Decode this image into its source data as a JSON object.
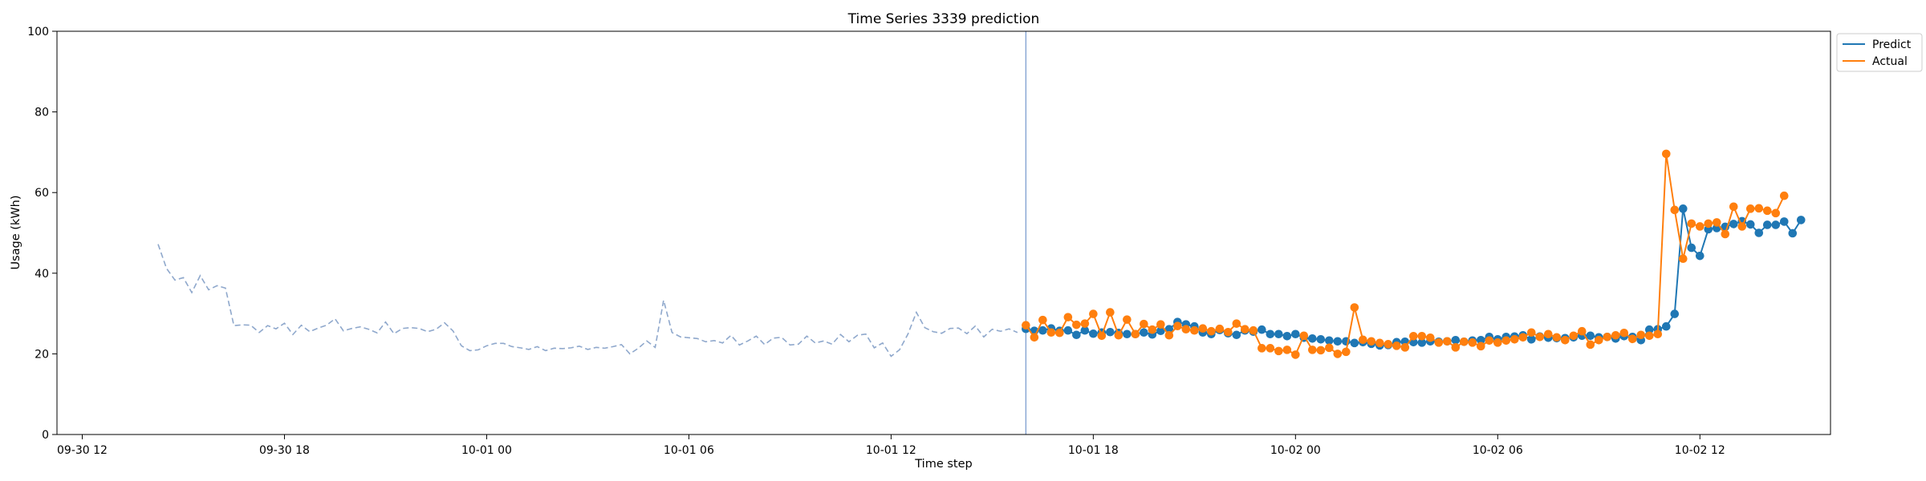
{
  "chart_data": {
    "type": "line",
    "title": "Time Series 3339 prediction",
    "xlabel": "Time step",
    "ylabel": "Usage (kWh)",
    "ylim": [
      0,
      100
    ],
    "yticks": [
      0,
      20,
      40,
      60,
      80,
      100
    ],
    "xticks": [
      "09-30 12",
      "09-30 18",
      "10-01 00",
      "10-01 06",
      "10-01 12",
      "10-01 18",
      "10-02 00",
      "10-02 06",
      "10-02 12"
    ],
    "x_step_hours": 0.25,
    "x_range_steps": [
      -3.0,
      207.5
    ],
    "split_step": 112,
    "legend": {
      "position": "top-right",
      "entries": [
        "Predict",
        "Actual"
      ]
    },
    "colors": {
      "history": "#8fa8cc",
      "predict": "#1f77b4",
      "actual": "#ff7f0e",
      "split": "#7f9fd0"
    },
    "history": {
      "style": "dashed",
      "x_start_step": 9,
      "values": [
        47.2,
        41.2,
        38.3,
        38.9,
        35.2,
        39.4,
        35.9,
        36.9,
        36.3,
        27.0,
        27.2,
        27.1,
        25.3,
        27.0,
        26.2,
        27.6,
        24.8,
        27.1,
        25.5,
        26.4,
        27.1,
        28.7,
        25.7,
        26.3,
        26.7,
        26.1,
        25.2,
        27.9,
        25.0,
        26.3,
        26.5,
        26.3,
        25.5,
        26.1,
        27.7,
        25.7,
        22.0,
        20.8,
        21.0,
        22.0,
        22.6,
        22.6,
        21.8,
        21.5,
        21.1,
        21.8,
        20.8,
        21.4,
        21.3,
        21.5,
        21.9,
        21.1,
        21.6,
        21.4,
        21.8,
        22.3,
        20.0,
        21.4,
        23.2,
        21.6,
        33.3,
        25.3,
        24.2,
        24.0,
        23.8,
        23.0,
        23.3,
        22.7,
        24.6,
        22.2,
        23.2,
        24.4,
        22.3,
        23.9,
        24.1,
        22.2,
        22.4,
        24.4,
        22.7,
        23.2,
        22.4,
        24.8,
        23.0,
        24.6,
        24.9,
        21.5,
        22.7,
        19.4,
        21.0,
        24.9,
        30.3,
        26.5,
        25.5,
        25.1,
        26.3,
        26.4,
        25.0,
        26.9,
        24.2,
        26.1,
        25.6,
        26.2,
        25.3
      ]
    },
    "series": [
      {
        "name": "Predict",
        "x_start_step": 112,
        "values": [
          26.2,
          25.7,
          25.8,
          26.3,
          25.7,
          25.8,
          24.7,
          25.8,
          25.0,
          25.3,
          25.4,
          25.2,
          24.9,
          24.9,
          25.3,
          24.8,
          25.7,
          26.1,
          27.9,
          27.3,
          26.8,
          25.3,
          24.9,
          25.9,
          25.1,
          24.7,
          25.8,
          25.5,
          26.0,
          24.9,
          24.9,
          24.4,
          24.9,
          24.0,
          23.8,
          23.6,
          23.3,
          23.1,
          23.1,
          22.7,
          22.9,
          22.5,
          22.1,
          22.2,
          22.9,
          23.0,
          22.9,
          22.8,
          23.1,
          23.0,
          23.1,
          23.4,
          23.0,
          23.3,
          23.4,
          24.2,
          23.6,
          24.2,
          24.3,
          24.6,
          23.6,
          24.3,
          24.0,
          23.9,
          23.9,
          24.1,
          24.5,
          24.5,
          24.1,
          24.2,
          23.8,
          24.4,
          24.2,
          23.4,
          26.0,
          26.1,
          26.8,
          29.9,
          56.0,
          46.3,
          44.3,
          50.9,
          51.2,
          51.5,
          52.2,
          52.9,
          52.1,
          50.0,
          52.0,
          52.0,
          52.8,
          49.9,
          53.2
        ]
      },
      {
        "name": "Actual",
        "x_start_step": 112,
        "values": [
          27.1,
          24.1,
          28.4,
          25.3,
          25.2,
          29.1,
          27.2,
          27.5,
          29.9,
          24.5,
          30.3,
          24.6,
          28.5,
          24.9,
          27.4,
          26.0,
          27.3,
          24.6,
          26.9,
          26.1,
          25.8,
          26.3,
          25.6,
          26.2,
          25.4,
          27.5,
          26.1,
          25.8,
          21.4,
          21.4,
          20.7,
          21.0,
          19.8,
          24.5,
          21.0,
          20.9,
          21.5,
          20.0,
          20.5,
          31.5,
          23.5,
          23.1,
          22.7,
          22.4,
          22.0,
          21.6,
          24.4,
          24.4,
          24.0,
          22.8,
          23.1,
          21.6,
          23.0,
          22.8,
          21.9,
          23.3,
          22.8,
          23.3,
          23.6,
          24.1,
          25.3,
          24.2,
          24.9,
          24.1,
          23.4,
          24.5,
          25.6,
          22.3,
          23.4,
          24.2,
          24.6,
          25.2,
          23.7,
          24.7,
          24.5,
          24.9,
          69.6,
          55.7,
          43.6,
          52.3,
          51.6,
          52.3,
          52.6,
          49.7,
          56.5,
          51.6,
          56.0,
          56.1,
          55.5,
          54.9,
          59.2
        ]
      }
    ]
  }
}
